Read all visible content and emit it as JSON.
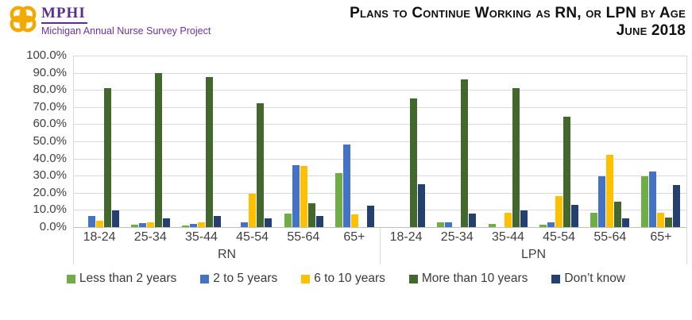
{
  "logo": {
    "acronym": "MPHI",
    "subtitle": "Michigan Annual Nurse Survey Project",
    "knot_color": "#F2A900",
    "text_color": "#5C2D91"
  },
  "title": {
    "line1": "Plans to Continue Working as RN, or LPN by Age",
    "line2": "June 2018"
  },
  "chart_data": {
    "type": "bar",
    "title": "Plans to Continue Working as RN, or LPN by Age",
    "subtitle": "June 2018",
    "ylim": [
      0,
      100
    ],
    "grid": true,
    "legend_position": "bottom",
    "y_ticks": [
      "100.0%",
      "90.0%",
      "80.0%",
      "70.0%",
      "60.0%",
      "50.0%",
      "40.0%",
      "30.0%",
      "20.0%",
      "10.0%",
      "0.0%"
    ],
    "sections": [
      {
        "label": "RN",
        "categories": [
          "18-24",
          "25-34",
          "35-44",
          "45-54",
          "55-64",
          "65+"
        ]
      },
      {
        "label": "LPN",
        "categories": [
          "18-24",
          "25-34",
          "35-44",
          "45-54",
          "55-64",
          "65+"
        ]
      }
    ],
    "series": [
      {
        "name": "Less than 2 years",
        "color": "#70AD47",
        "values": {
          "RN": [
            0,
            1.5,
            1,
            0,
            8,
            31.5
          ],
          "LPN": [
            0,
            3,
            2,
            1.5,
            8.5,
            29.5
          ]
        }
      },
      {
        "name": "2 to 5 years",
        "color": "#4472C4",
        "values": {
          "RN": [
            6.5,
            2.5,
            2,
            3,
            36,
            48
          ],
          "LPN": [
            0,
            3,
            0,
            3,
            29.5,
            32.5
          ]
        }
      },
      {
        "name": "6 to 10 years",
        "color": "#FFC000",
        "values": {
          "RN": [
            3.5,
            3,
            3,
            19.5,
            35.5,
            7.5
          ],
          "LPN": [
            0,
            0,
            8.5,
            18,
            42,
            8.5
          ]
        }
      },
      {
        "name": "More than 10 years",
        "color": "#44672E",
        "values": {
          "RN": [
            81,
            90,
            87.5,
            72,
            14,
            0
          ],
          "LPN": [
            75,
            86,
            81,
            64.5,
            15,
            5.5
          ]
        }
      },
      {
        "name": "Don’t know",
        "color": "#24406E",
        "values": {
          "RN": [
            9.5,
            5,
            6.5,
            5,
            6.5,
            12.5
          ],
          "LPN": [
            25,
            8,
            9.5,
            13,
            5,
            24.5
          ]
        }
      }
    ]
  }
}
